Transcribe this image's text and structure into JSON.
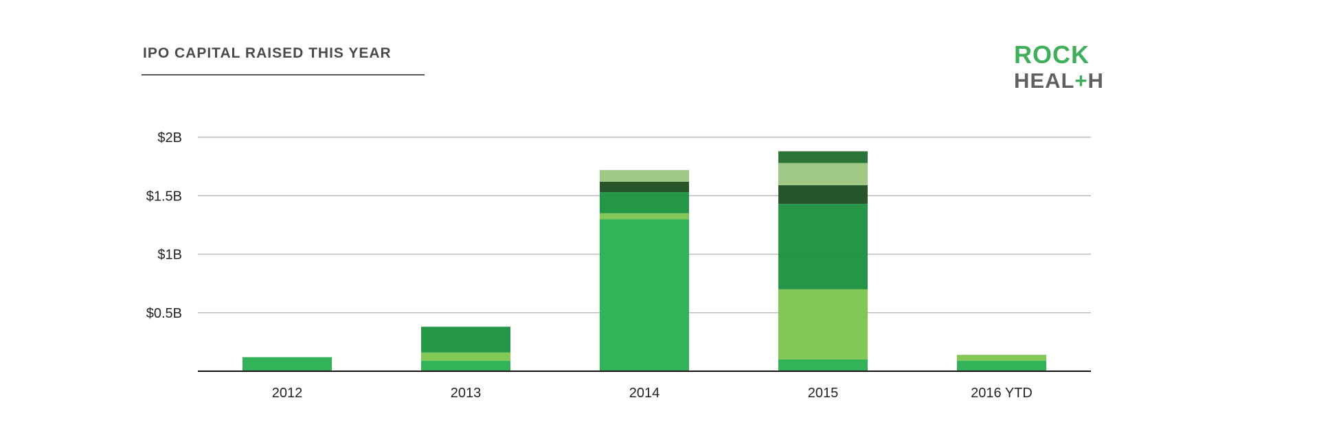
{
  "title": "IPO CAPITAL RAISED THIS YEAR",
  "logo": {
    "line1": "ROCK",
    "line2": "HEALTH",
    "brand_color": "#3dae5a",
    "text_color": "#606060"
  },
  "chart_data": {
    "type": "bar",
    "stacked": true,
    "title": "IPO CAPITAL RAISED THIS YEAR",
    "xlabel": "",
    "ylabel": "",
    "ylim": [
      0,
      2
    ],
    "unit": "$B",
    "yticks": [
      {
        "value": 0.5,
        "label": "$0.5B"
      },
      {
        "value": 1,
        "label": "$1B"
      },
      {
        "value": 1.5,
        "label": "$1.5B"
      },
      {
        "value": 2,
        "label": "$2B"
      }
    ],
    "grid": true,
    "legend": "none",
    "categories": [
      "2012",
      "2013",
      "2014",
      "2015",
      "2016 YTD"
    ],
    "stacks": [
      {
        "category": "2012",
        "segments": [
          {
            "value": 0.12,
            "color": "#2bb154"
          }
        ]
      },
      {
        "category": "2013",
        "segments": [
          {
            "value": 0.09,
            "color": "#2bb154"
          },
          {
            "value": 0.07,
            "color": "#7fc551"
          },
          {
            "value": 0.22,
            "color": "#1c9440"
          }
        ]
      },
      {
        "category": "2014",
        "segments": [
          {
            "value": 1.3,
            "color": "#2bb154"
          },
          {
            "value": 0.05,
            "color": "#7fc551"
          },
          {
            "value": 0.18,
            "color": "#1c9440"
          },
          {
            "value": 0.09,
            "color": "#1e4f21"
          },
          {
            "value": 0.1,
            "color": "#9bc680"
          }
        ]
      },
      {
        "category": "2015",
        "segments": [
          {
            "value": 0.1,
            "color": "#2bb154"
          },
          {
            "value": 0.6,
            "color": "#7fc551"
          },
          {
            "value": 0.73,
            "color": "#1c9440"
          },
          {
            "value": 0.16,
            "color": "#1e4f21"
          },
          {
            "value": 0.19,
            "color": "#9bc680"
          },
          {
            "value": 0.1,
            "color": "#246f31"
          }
        ]
      },
      {
        "category": "2016 YTD",
        "segments": [
          {
            "value": 0.09,
            "color": "#2bb154"
          },
          {
            "value": 0.05,
            "color": "#7fc551"
          }
        ]
      }
    ]
  }
}
